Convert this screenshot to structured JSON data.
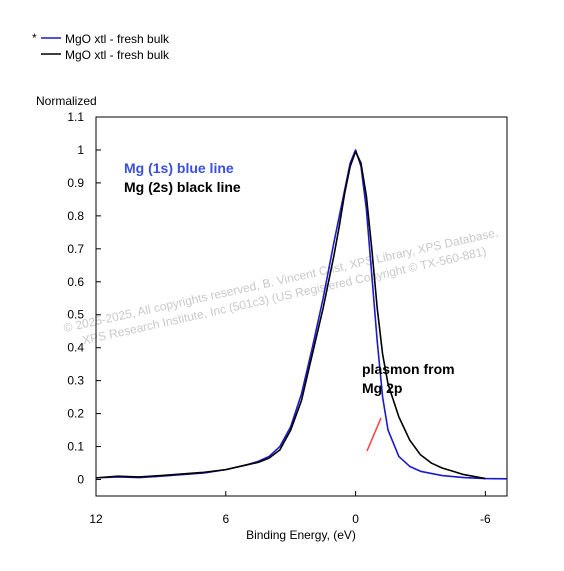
{
  "chart_data": {
    "type": "line",
    "title": "",
    "xlabel": "Binding Energy, (eV)",
    "ylabel": "Normalized",
    "xlim": [
      12,
      -7
    ],
    "ylim": [
      -0.05,
      1.1
    ],
    "xticks": [
      "12",
      "6",
      "0",
      "-6"
    ],
    "yticks": [
      "0",
      "0.1",
      "0.2",
      "0.3",
      "0.4",
      "0.5",
      "0.6",
      "0.7",
      "0.8",
      "0.9",
      "1",
      "1.1"
    ],
    "legend_position": "top-left",
    "legend_marker": "*",
    "series": [
      {
        "name": "MgO xtl - fresh bulk",
        "color": "#1a1acc",
        "x": [
          12,
          11,
          10,
          9,
          8,
          7,
          6,
          5,
          4.5,
          4,
          3.5,
          3,
          2.5,
          2,
          1.5,
          1,
          0.75,
          0.5,
          0.25,
          0,
          -0.25,
          -0.5,
          -0.75,
          -1,
          -1.25,
          -1.5,
          -2,
          -2.5,
          -3,
          -4,
          -5,
          -6,
          -7
        ],
        "y": [
          0.005,
          0.008,
          0.006,
          0.01,
          0.015,
          0.02,
          0.03,
          0.045,
          0.055,
          0.07,
          0.1,
          0.16,
          0.26,
          0.4,
          0.55,
          0.72,
          0.8,
          0.88,
          0.96,
          1.0,
          0.95,
          0.82,
          0.62,
          0.42,
          0.25,
          0.15,
          0.07,
          0.04,
          0.025,
          0.012,
          0.006,
          0.003,
          0.002
        ]
      },
      {
        "name": "MgO xtl - fresh bulk",
        "color": "#000000",
        "x": [
          12,
          11,
          10,
          9,
          8,
          7,
          6,
          5,
          4.5,
          4,
          3.5,
          3,
          2.5,
          2,
          1.5,
          1,
          0.75,
          0.5,
          0.25,
          0,
          -0.25,
          -0.5,
          -0.75,
          -1,
          -1.25,
          -1.5,
          -2,
          -2.5,
          -3,
          -3.5,
          -4,
          -4.5,
          -5,
          -6
        ],
        "y": [
          0.005,
          0.01,
          0.008,
          0.012,
          0.017,
          0.022,
          0.03,
          0.045,
          0.052,
          0.065,
          0.09,
          0.15,
          0.24,
          0.38,
          0.52,
          0.68,
          0.77,
          0.87,
          0.95,
          0.995,
          0.96,
          0.86,
          0.7,
          0.52,
          0.38,
          0.29,
          0.19,
          0.12,
          0.075,
          0.05,
          0.035,
          0.025,
          0.015,
          0.003
        ]
      }
    ],
    "annotations": [
      {
        "text": "Mg (1s) blue line",
        "color": "#3a4fdc"
      },
      {
        "text": "Mg (2s) black line",
        "color": "#000000"
      },
      {
        "text": "plasmon from",
        "color": "#000000"
      },
      {
        "text": "Mg 2p",
        "color": "#000000"
      }
    ],
    "arrow_color": "#ff4444",
    "watermark": [
      "©  2025-2025,  All copyrights reserved,   B. Vincent Crist,  XPS Library, XPS Database,",
      "XPS Research Institute, Inc (501c3)   (US Registered Copyright © TX-560-881)"
    ]
  }
}
